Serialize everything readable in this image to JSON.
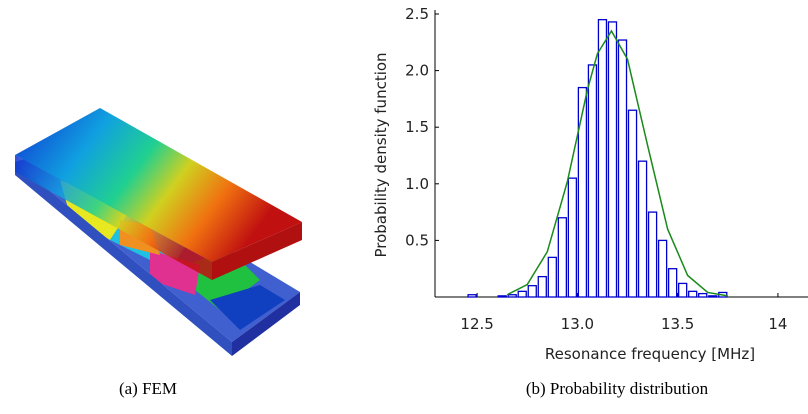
{
  "figure_a": {
    "caption": "(a) FEM"
  },
  "chart_data": {
    "type": "histogram",
    "caption": "(b) Probability distribution",
    "xlabel": "Resonance frequency [MHz]",
    "ylabel": "Probability density function",
    "bins": [
      12.4,
      12.45,
      12.5,
      12.55,
      12.6,
      12.65,
      12.7,
      12.75,
      12.8,
      12.85,
      12.9,
      12.95,
      13.0,
      13.05,
      13.1,
      13.15,
      13.2,
      13.25,
      13.3,
      13.35,
      13.4,
      13.45,
      13.5,
      13.55,
      13.6,
      13.65,
      13.7,
      13.75,
      13.8
    ],
    "values": [
      0,
      0.02,
      0,
      0,
      0.01,
      0.02,
      0.05,
      0.1,
      0.18,
      0.35,
      0.7,
      1.05,
      1.85,
      2.05,
      2.45,
      2.43,
      2.27,
      1.65,
      1.2,
      0.75,
      0.5,
      0.25,
      0.12,
      0.05,
      0.03,
      0.01,
      0.04,
      0
    ],
    "color": "#0000cc",
    "curve": {
      "x": [
        12.65,
        12.75,
        12.85,
        12.95,
        13.05,
        13.1,
        13.17,
        13.25,
        13.35,
        13.45,
        13.55,
        13.65,
        13.75
      ],
      "values": [
        0.02,
        0.11,
        0.4,
        1.02,
        1.83,
        2.15,
        2.35,
        2.1,
        1.34,
        0.6,
        0.19,
        0.04,
        0.01
      ],
      "color": "#1a8a1a"
    },
    "xlim": [
      12.29,
      14.15
    ],
    "ylim": [
      0,
      2.5
    ],
    "xticks": [
      12.5,
      {
        "value": 13,
        "label": "13.0"
      },
      13.5,
      14
    ],
    "yticks": [
      0.5,
      {
        "value": 1,
        "label": "1.0"
      },
      1.5,
      {
        "value": 2,
        "label": "2.0"
      },
      2.5
    ]
  }
}
